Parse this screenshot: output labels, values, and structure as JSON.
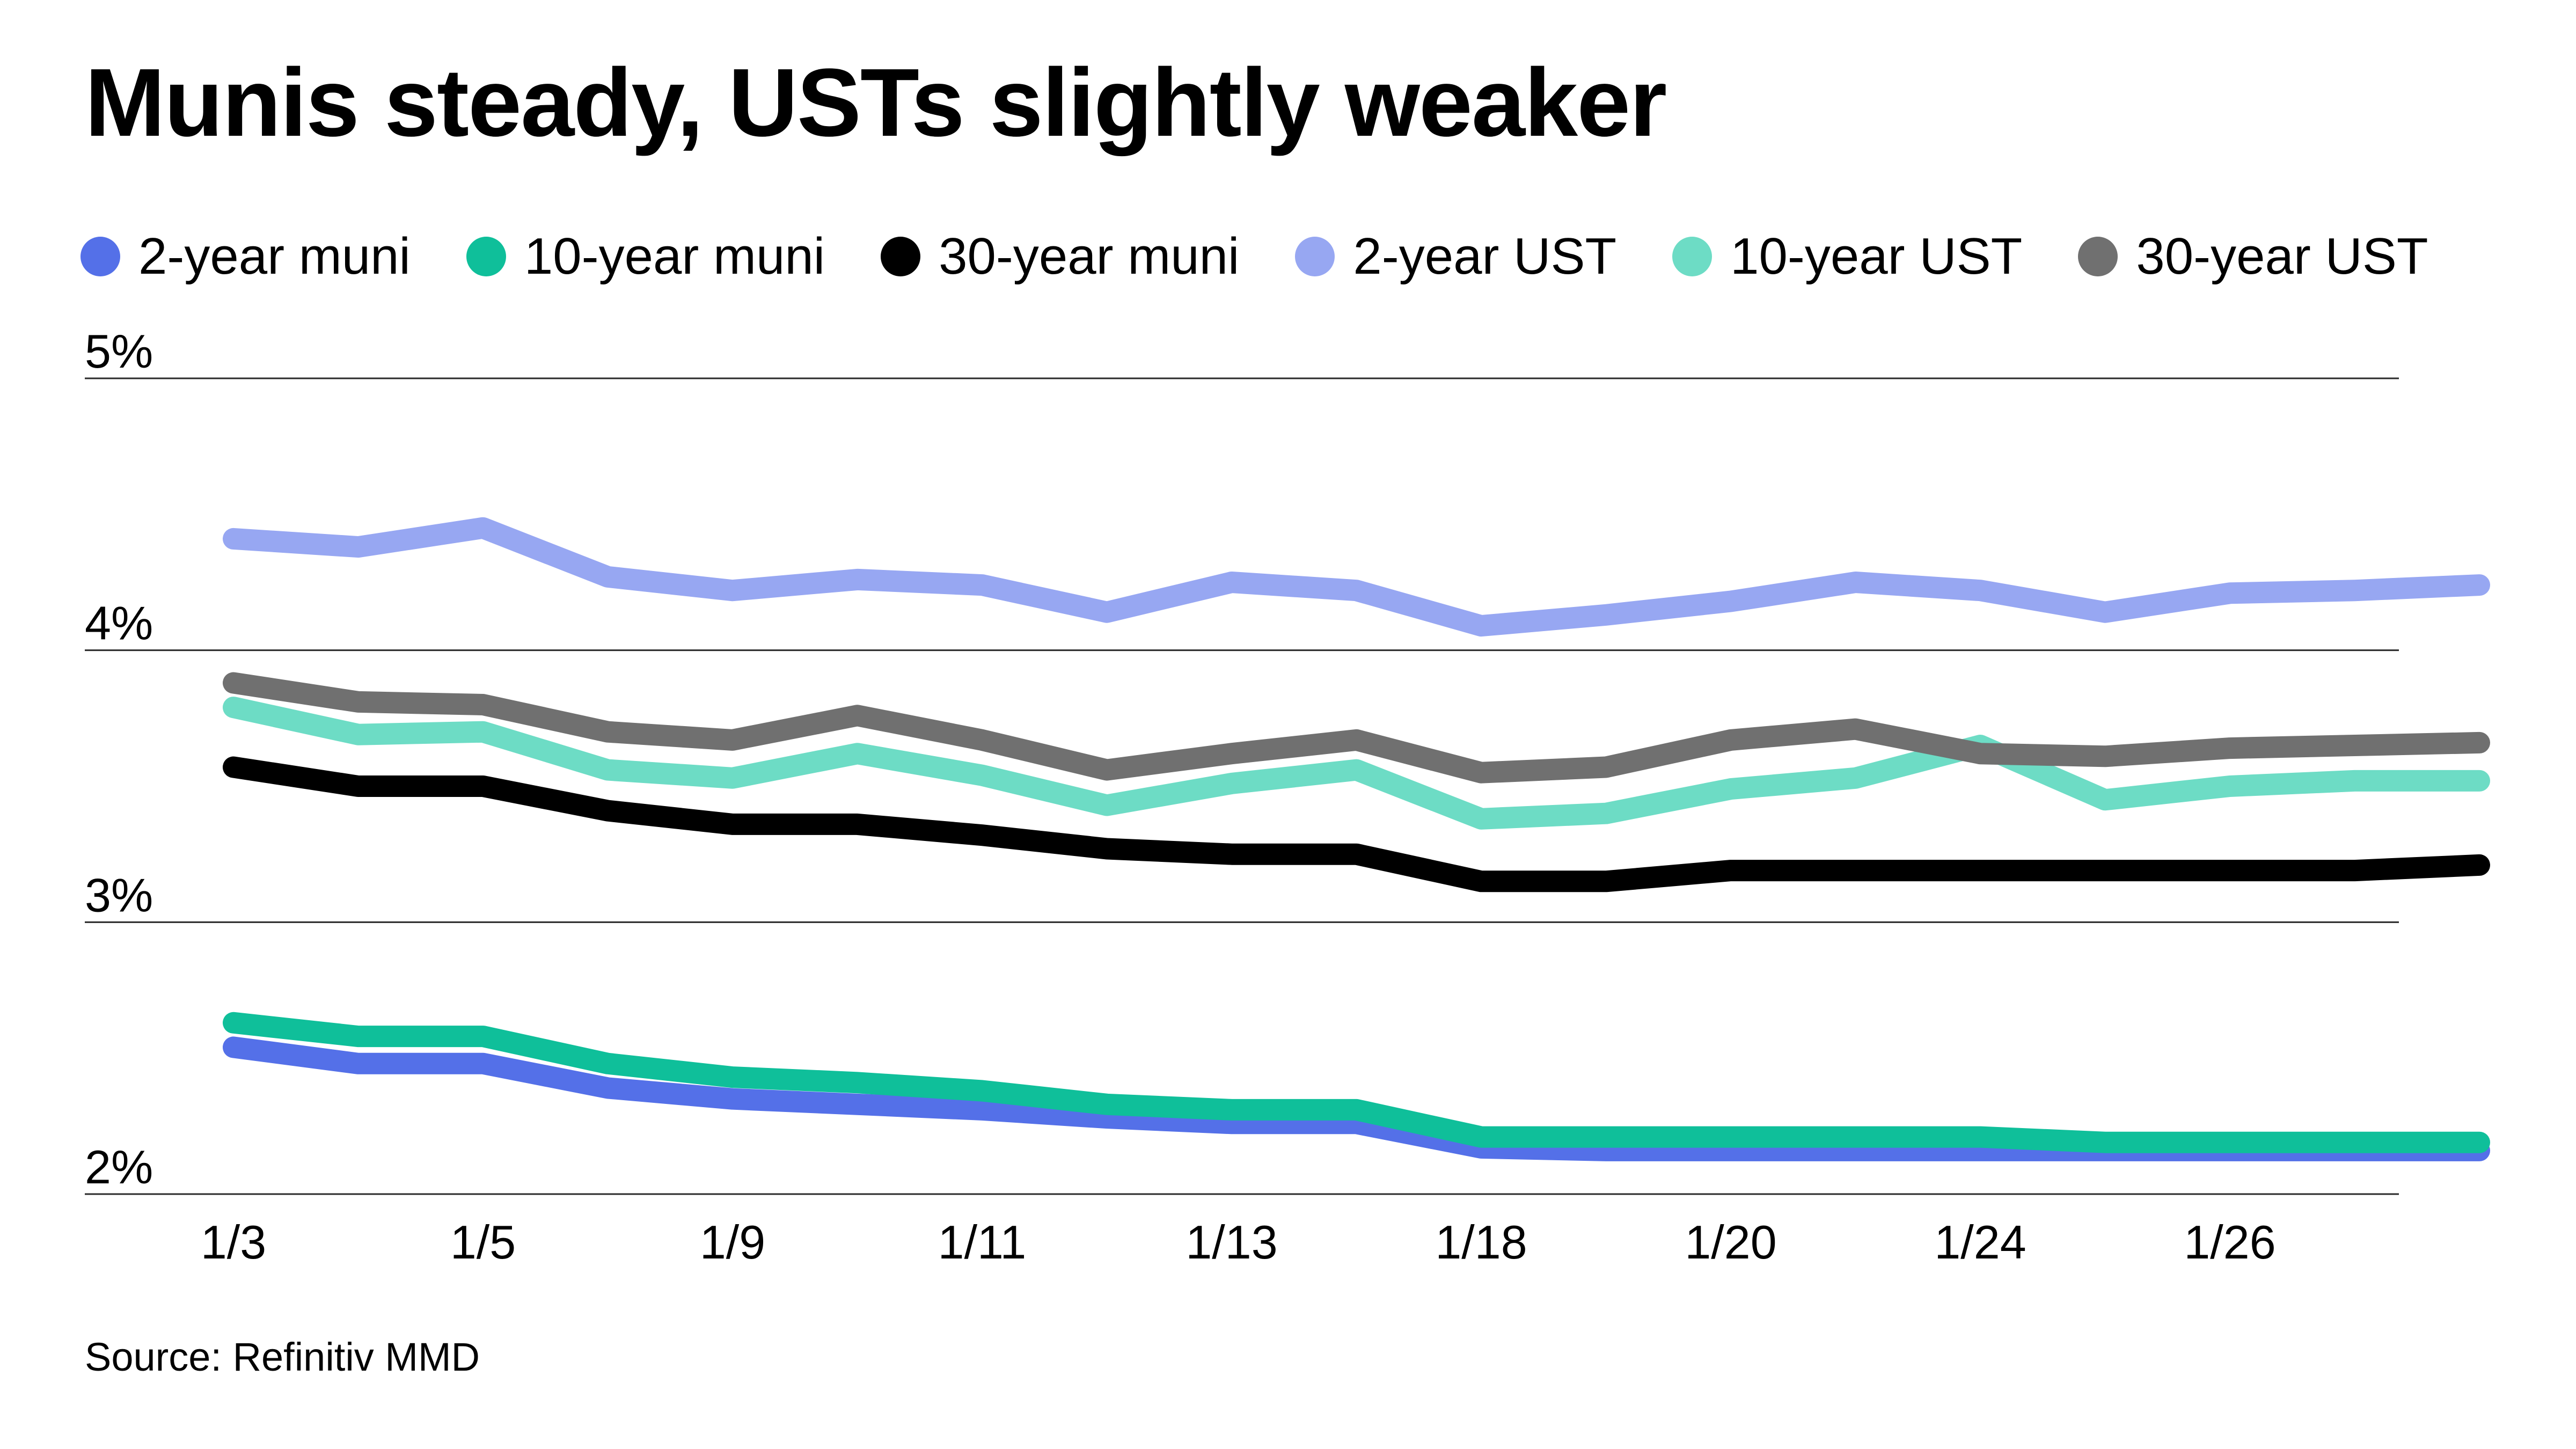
{
  "chart_data": {
    "type": "line",
    "title": "Munis steady, USTs slightly weaker",
    "source": "Source: Refinitiv MMD",
    "xlabel": "",
    "ylabel": "",
    "ylim": [
      2,
      5
    ],
    "grid": true,
    "legend_position": "top",
    "ticks": {
      "y": [
        {
          "value": 5,
          "label": "5%"
        },
        {
          "value": 4,
          "label": "4%"
        },
        {
          "value": 3,
          "label": "3%"
        },
        {
          "value": 2,
          "label": "2%"
        }
      ],
      "x": [
        {
          "index": 0,
          "label": "1/3"
        },
        {
          "index": 2,
          "label": "1/5"
        },
        {
          "index": 4,
          "label": "1/9"
        },
        {
          "index": 6,
          "label": "1/11"
        },
        {
          "index": 8,
          "label": "1/13"
        },
        {
          "index": 10,
          "label": "1/18"
        },
        {
          "index": 12,
          "label": "1/20"
        },
        {
          "index": 14,
          "label": "1/24"
        },
        {
          "index": 16,
          "label": "1/26"
        }
      ]
    },
    "series": [
      {
        "name": "2-year muni",
        "color": "#5470e8",
        "values": [
          2.54,
          2.48,
          2.48,
          2.39,
          2.35,
          2.33,
          2.31,
          2.28,
          2.26,
          2.26,
          2.17,
          2.16,
          2.16,
          2.16,
          2.16,
          2.16,
          2.16,
          2.16,
          2.16
        ]
      },
      {
        "name": "10-year muni",
        "color": "#0fbf9a",
        "values": [
          2.63,
          2.58,
          2.58,
          2.48,
          2.43,
          2.41,
          2.38,
          2.33,
          2.31,
          2.31,
          2.21,
          2.21,
          2.21,
          2.21,
          2.21,
          2.19,
          2.19,
          2.19,
          2.19
        ]
      },
      {
        "name": "30-year muni",
        "color": "#000000",
        "values": [
          3.57,
          3.5,
          3.5,
          3.41,
          3.36,
          3.36,
          3.32,
          3.27,
          3.25,
          3.25,
          3.15,
          3.15,
          3.19,
          3.19,
          3.19,
          3.19,
          3.19,
          3.19,
          3.21
        ]
      },
      {
        "name": "2-year UST",
        "color": "#97a7f2",
        "values": [
          4.41,
          4.38,
          4.45,
          4.27,
          4.22,
          4.26,
          4.24,
          4.14,
          4.25,
          4.22,
          4.09,
          4.13,
          4.18,
          4.25,
          4.22,
          4.14,
          4.21,
          4.22,
          4.24
        ]
      },
      {
        "name": "10-year UST",
        "color": "#6ddcc5",
        "values": [
          3.79,
          3.69,
          3.7,
          3.56,
          3.53,
          3.62,
          3.54,
          3.43,
          3.51,
          3.56,
          3.38,
          3.4,
          3.49,
          3.53,
          3.65,
          3.45,
          3.5,
          3.52,
          3.52
        ]
      },
      {
        "name": "30-year UST",
        "color": "#707070",
        "values": [
          3.88,
          3.81,
          3.8,
          3.7,
          3.67,
          3.76,
          3.67,
          3.56,
          3.62,
          3.67,
          3.55,
          3.57,
          3.67,
          3.71,
          3.62,
          3.61,
          3.64,
          3.65,
          3.66
        ]
      }
    ]
  }
}
